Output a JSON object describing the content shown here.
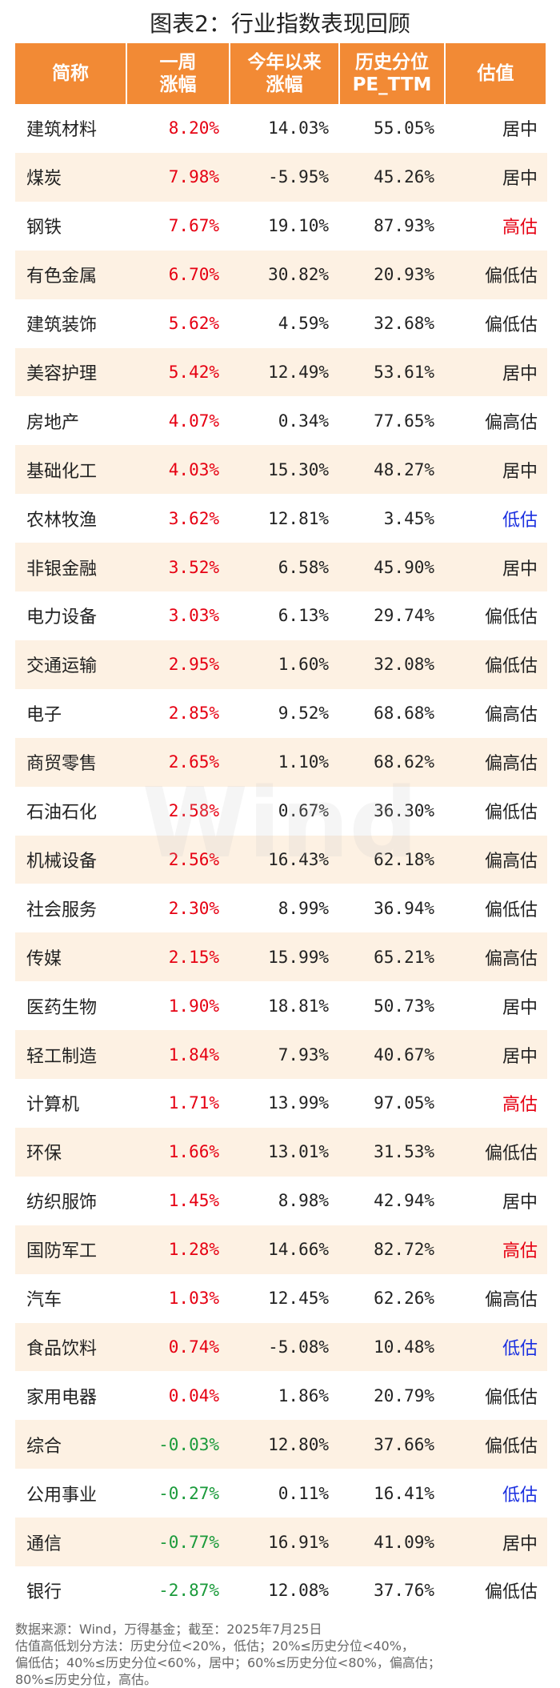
{
  "title": "图表2：行业指数表现回顾",
  "table": {
    "header": [
      [
        "简称"
      ],
      [
        "一周",
        "涨幅"
      ],
      [
        "今年以来",
        "涨幅"
      ],
      [
        "历史分位",
        "PE_TTM"
      ],
      [
        "估值"
      ]
    ],
    "rows": [
      [
        "建筑材料",
        "8.20%",
        "14.03%",
        "55.05%",
        "居中"
      ],
      [
        "煤炭",
        "7.98%",
        "-5.95%",
        "45.26%",
        "居中"
      ],
      [
        "钢铁",
        "7.67%",
        "19.10%",
        "87.93%",
        "高估"
      ],
      [
        "有色金属",
        "6.70%",
        "30.82%",
        "20.93%",
        "偏低估"
      ],
      [
        "建筑装饰",
        "5.62%",
        "4.59%",
        "32.68%",
        "偏低估"
      ],
      [
        "美容护理",
        "5.42%",
        "12.49%",
        "53.61%",
        "居中"
      ],
      [
        "房地产",
        "4.07%",
        "0.34%",
        "77.65%",
        "偏高估"
      ],
      [
        "基础化工",
        "4.03%",
        "15.30%",
        "48.27%",
        "居中"
      ],
      [
        "农林牧渔",
        "3.62%",
        "12.81%",
        "3.45%",
        "低估"
      ],
      [
        "非银金融",
        "3.52%",
        "6.58%",
        "45.90%",
        "居中"
      ],
      [
        "电力设备",
        "3.03%",
        "6.13%",
        "29.74%",
        "偏低估"
      ],
      [
        "交通运输",
        "2.95%",
        "1.60%",
        "32.08%",
        "偏低估"
      ],
      [
        "电子",
        "2.85%",
        "9.52%",
        "68.68%",
        "偏高估"
      ],
      [
        "商贸零售",
        "2.65%",
        "1.10%",
        "68.62%",
        "偏高估"
      ],
      [
        "石油石化",
        "2.58%",
        "0.67%",
        "36.30%",
        "偏低估"
      ],
      [
        "机械设备",
        "2.56%",
        "16.43%",
        "62.18%",
        "偏高估"
      ],
      [
        "社会服务",
        "2.30%",
        "8.99%",
        "36.94%",
        "偏低估"
      ],
      [
        "传媒",
        "2.15%",
        "15.99%",
        "65.21%",
        "偏高估"
      ],
      [
        "医药生物",
        "1.90%",
        "18.81%",
        "50.73%",
        "居中"
      ],
      [
        "轻工制造",
        "1.84%",
        "7.93%",
        "40.67%",
        "居中"
      ],
      [
        "计算机",
        "1.71%",
        "13.99%",
        "97.05%",
        "高估"
      ],
      [
        "环保",
        "1.66%",
        "13.01%",
        "31.53%",
        "偏低估"
      ],
      [
        "纺织服饰",
        "1.45%",
        "8.98%",
        "42.94%",
        "居中"
      ],
      [
        "国防军工",
        "1.28%",
        "14.66%",
        "82.72%",
        "高估"
      ],
      [
        "汽车",
        "1.03%",
        "12.45%",
        "62.26%",
        "偏高估"
      ],
      [
        "食品饮料",
        "0.74%",
        "-5.08%",
        "10.48%",
        "低估"
      ],
      [
        "家用电器",
        "0.04%",
        "1.86%",
        "20.79%",
        "偏低估"
      ],
      [
        "综合",
        "-0.03%",
        "12.80%",
        "37.66%",
        "偏低估"
      ],
      [
        "公用事业",
        "-0.27%",
        "0.11%",
        "16.41%",
        "低估"
      ],
      [
        "通信",
        "-0.77%",
        "16.91%",
        "41.09%",
        "居中"
      ],
      [
        "银行",
        "-2.87%",
        "12.08%",
        "37.76%",
        "偏低估"
      ]
    ],
    "valuation_colors": [
      "#222",
      "#222",
      "#e60012",
      "#222",
      "#222",
      "#222",
      "#222",
      "#222",
      "#1a2fe0",
      "#222",
      "#222",
      "#222",
      "#222",
      "#222",
      "#222",
      "#222",
      "#222",
      "#222",
      "#222",
      "#222",
      "#e60012",
      "#222",
      "#222",
      "#e60012",
      "#222",
      "#1a2fe0",
      "#222",
      "#222",
      "#1a2fe0",
      "#222",
      "#222"
    ],
    "change_colors": {
      "positive": "#e60012",
      "negative": "#1a9a3a"
    }
  },
  "watermark": "Wind",
  "footer": [
    "数据来源：Wind，万得基金；截至：2025年7月25日",
    "估值高低划分方法：历史分位<20%，低估；20%≤历史分位<40%，",
    "偏低估；40%≤历史分位<60%，居中；60%≤历史分位<80%，偏高估；",
    "80%≤历史分位，高估。"
  ]
}
